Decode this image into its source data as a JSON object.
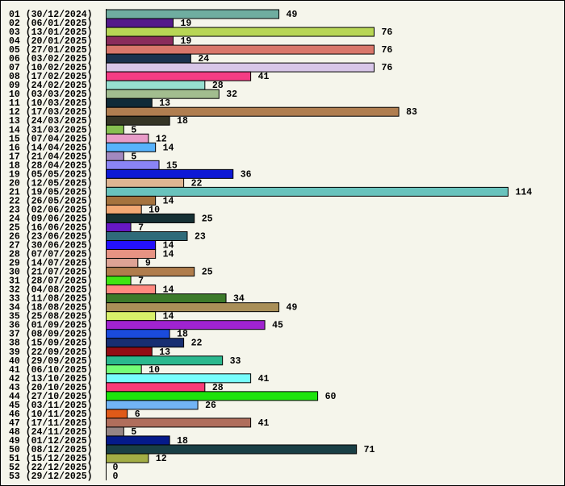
{
  "chart_data": {
    "type": "bar",
    "orientation": "horizontal",
    "title": "",
    "xlabel": "",
    "ylabel": "",
    "xlim": [
      0,
      114
    ],
    "grid": false,
    "categories": [
      "01 (30/12/2024)",
      "02 (06/01/2025)",
      "03 (13/01/2025)",
      "04 (20/01/2025)",
      "05 (27/01/2025)",
      "06 (03/02/2025)",
      "07 (10/02/2025)",
      "08 (17/02/2025)",
      "09 (24/02/2025)",
      "10 (03/03/2025)",
      "11 (10/03/2025)",
      "12 (17/03/2025)",
      "13 (24/03/2025)",
      "14 (31/03/2025)",
      "15 (07/04/2025)",
      "16 (14/04/2025)",
      "17 (21/04/2025)",
      "18 (28/04/2025)",
      "19 (05/05/2025)",
      "20 (12/05/2025)",
      "21 (19/05/2025)",
      "22 (26/05/2025)",
      "23 (02/06/2025)",
      "24 (09/06/2025)",
      "25 (16/06/2025)",
      "26 (23/06/2025)",
      "27 (30/06/2025)",
      "28 (07/07/2025)",
      "29 (14/07/2025)",
      "30 (21/07/2025)",
      "31 (28/07/2025)",
      "32 (04/08/2025)",
      "33 (11/08/2025)",
      "34 (18/08/2025)",
      "35 (25/08/2025)",
      "36 (01/09/2025)",
      "37 (08/09/2025)",
      "38 (15/09/2025)",
      "39 (22/09/2025)",
      "40 (29/09/2025)",
      "41 (06/10/2025)",
      "42 (13/10/2025)",
      "43 (20/10/2025)",
      "44 (27/10/2025)",
      "45 (03/11/2025)",
      "46 (10/11/2025)",
      "47 (17/11/2025)",
      "48 (24/11/2025)",
      "49 (01/12/2025)",
      "50 (08/12/2025)",
      "51 (15/12/2025)",
      "52 (22/12/2025)",
      "53 (29/12/2025)"
    ],
    "values": [
      49,
      19,
      76,
      19,
      76,
      24,
      76,
      41,
      28,
      32,
      13,
      83,
      18,
      5,
      12,
      14,
      5,
      15,
      36,
      22,
      114,
      14,
      10,
      25,
      7,
      23,
      14,
      14,
      9,
      25,
      7,
      14,
      34,
      49,
      14,
      45,
      18,
      22,
      13,
      33,
      10,
      41,
      28,
      60,
      26,
      6,
      41,
      5,
      18,
      71,
      12,
      0,
      0
    ],
    "colors": [
      "#6fada0",
      "#541a8a",
      "#b8d655",
      "#8a2c5c",
      "#d9776b",
      "#1b324e",
      "#d8c6e8",
      "#f53c84",
      "#97dfd0",
      "#a2bd8f",
      "#102b38",
      "#b07e50",
      "#353526",
      "#86bf50",
      "#e89cc8",
      "#58b2fb",
      "#a289bf",
      "#8a84f5",
      "#0e19d5",
      "#deb592",
      "#69c3bd",
      "#a5733e",
      "#f2a874",
      "#163034",
      "#6618c4",
      "#2f6b7a",
      "#2411fb",
      "#e79383",
      "#dea395",
      "#b07d4c",
      "#40e512",
      "#ff8a80",
      "#3c7a2a",
      "#a98f58",
      "#d8f06a",
      "#a023d0",
      "#1a4bdd",
      "#172e72",
      "#920c14",
      "#2bb88e",
      "#74fd76",
      "#77fdfc",
      "#f83b77",
      "#1ee30c",
      "#72b4f5",
      "#e05a18",
      "#b06e5c",
      "#958585",
      "#051a8a",
      "#193f45",
      "#a2ad45",
      "#cccccc",
      "#cccccc"
    ]
  }
}
